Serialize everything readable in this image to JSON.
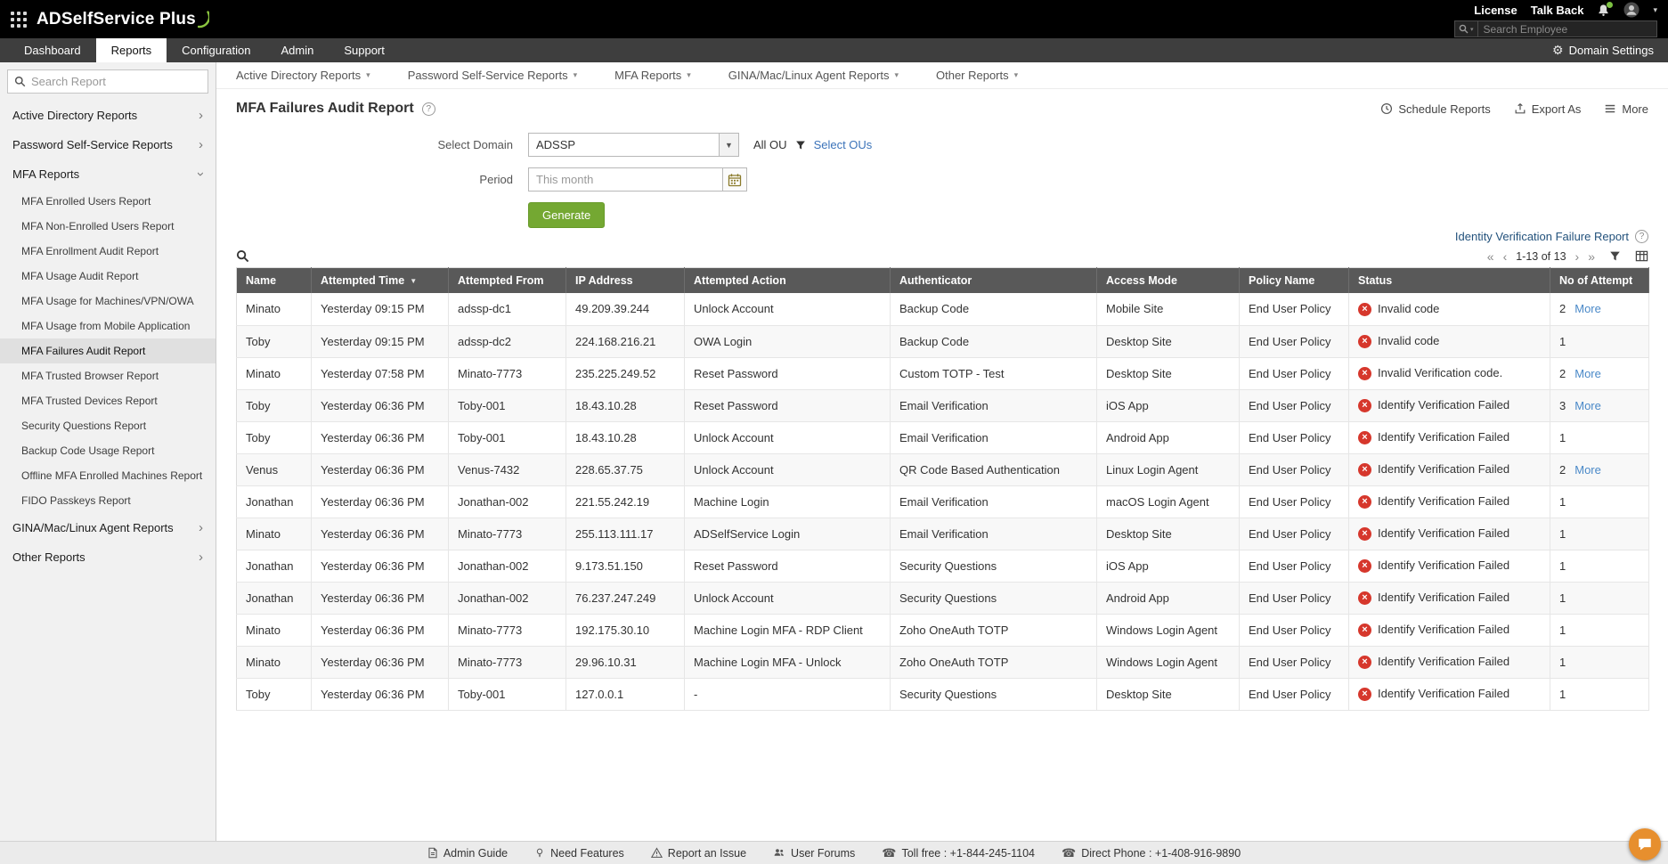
{
  "topbar": {
    "logo_text": "ADSelfService Plus",
    "license_label": "License",
    "talkback_label": "Talk Back",
    "employee_search_placeholder": "Search Employee"
  },
  "navbar": {
    "tabs": [
      "Dashboard",
      "Reports",
      "Configuration",
      "Admin",
      "Support"
    ],
    "active_tab": "Reports",
    "domain_settings_label": "Domain Settings"
  },
  "sidebar": {
    "search_placeholder": "Search Report",
    "sections": [
      {
        "label": "Active Directory Reports",
        "expanded": false
      },
      {
        "label": "Password Self-Service Reports",
        "expanded": false
      },
      {
        "label": "MFA Reports",
        "expanded": true,
        "selected_item": "MFA Failures Audit Report",
        "items": [
          "MFA Enrolled Users Report",
          "MFA Non-Enrolled Users Report",
          "MFA Enrollment Audit Report",
          "MFA Usage Audit Report",
          "MFA Usage for Machines/VPN/OWA",
          "MFA Usage from Mobile Application",
          "MFA Failures Audit Report",
          "MFA Trusted Browser Report",
          "MFA Trusted Devices Report",
          "Security Questions Report",
          "Backup Code Usage Report",
          "Offline MFA Enrolled Machines Report",
          "FIDO Passkeys Report"
        ]
      },
      {
        "label": "GINA/Mac/Linux Agent Reports",
        "expanded": false
      },
      {
        "label": "Other Reports",
        "expanded": false
      }
    ]
  },
  "report_menubar": [
    "Active Directory Reports",
    "Password Self-Service Reports",
    "MFA Reports",
    "GINA/Mac/Linux Agent Reports",
    "Other Reports"
  ],
  "page": {
    "title": "MFA Failures Audit Report",
    "actions": [
      {
        "label": "Schedule Reports",
        "icon": "schedule-icon"
      },
      {
        "label": "Export As",
        "icon": "export-icon"
      },
      {
        "label": "More",
        "icon": "more-icon"
      }
    ]
  },
  "form": {
    "domain_label": "Select Domain",
    "domain_value": "ADSSP",
    "ou_label": "All OU",
    "select_ous_label": "Select OUs",
    "period_label": "Period",
    "period_placeholder": "This month",
    "generate_label": "Generate"
  },
  "links": {
    "identity_failure_report": "Identity Verification Failure Report"
  },
  "table": {
    "pagination": {
      "range": "1-13 of 13"
    },
    "sorted_column": "Attempted Time",
    "more_label": "More",
    "columns": [
      "Name",
      "Attempted Time",
      "Attempted From",
      "IP Address",
      "Attempted Action",
      "Authenticator",
      "Access Mode",
      "Policy Name",
      "Status",
      "No of Attempt"
    ],
    "rows": [
      {
        "name": "Minato",
        "time": "Yesterday 09:15 PM",
        "from": "adssp-dc1",
        "ip": "49.209.39.244",
        "action": "Unlock Account",
        "authenticator": "Backup Code",
        "mode": "Mobile Site",
        "policy": "End User Policy",
        "status": "Invalid code",
        "attempts": "2",
        "more": true
      },
      {
        "name": "Toby",
        "time": "Yesterday 09:15 PM",
        "from": "adssp-dc2",
        "ip": "224.168.216.21",
        "action": "OWA Login",
        "authenticator": "Backup Code",
        "mode": "Desktop Site",
        "policy": "End User Policy",
        "status": "Invalid code",
        "attempts": "1",
        "more": false
      },
      {
        "name": "Minato",
        "time": "Yesterday 07:58 PM",
        "from": "Minato-7773",
        "ip": "235.225.249.52",
        "action": "Reset Password",
        "authenticator": "Custom TOTP - Test",
        "mode": "Desktop Site",
        "policy": "End User Policy",
        "status": "Invalid Verification code.",
        "attempts": "2",
        "more": true
      },
      {
        "name": "Toby",
        "time": "Yesterday 06:36 PM",
        "from": "Toby-001",
        "ip": "18.43.10.28",
        "action": "Reset Password",
        "authenticator": "Email Verification",
        "mode": "iOS App",
        "policy": "End User Policy",
        "status": "Identify Verification Failed",
        "attempts": "3",
        "more": true
      },
      {
        "name": "Toby",
        "time": "Yesterday 06:36 PM",
        "from": "Toby-001",
        "ip": "18.43.10.28",
        "action": "Unlock Account",
        "authenticator": "Email Verification",
        "mode": "Android App",
        "policy": "End User Policy",
        "status": "Identify Verification Failed",
        "attempts": "1",
        "more": false
      },
      {
        "name": "Venus",
        "time": "Yesterday 06:36 PM",
        "from": "Venus-7432",
        "ip": "228.65.37.75",
        "action": "Unlock Account",
        "authenticator": "QR Code Based Authentication",
        "mode": "Linux Login Agent",
        "policy": "End User Policy",
        "status": "Identify Verification Failed",
        "attempts": "2",
        "more": true
      },
      {
        "name": "Jonathan",
        "time": "Yesterday 06:36 PM",
        "from": "Jonathan-002",
        "ip": "221.55.242.19",
        "action": "Machine Login",
        "authenticator": "Email Verification",
        "mode": "macOS Login Agent",
        "policy": "End User Policy",
        "status": "Identify Verification Failed",
        "attempts": "1",
        "more": false
      },
      {
        "name": "Minato",
        "time": "Yesterday 06:36 PM",
        "from": "Minato-7773",
        "ip": "255.113.111.17",
        "action": "ADSelfService Login",
        "authenticator": "Email Verification",
        "mode": "Desktop Site",
        "policy": "End User Policy",
        "status": "Identify Verification Failed",
        "attempts": "1",
        "more": false
      },
      {
        "name": "Jonathan",
        "time": "Yesterday 06:36 PM",
        "from": "Jonathan-002",
        "ip": "9.173.51.150",
        "action": "Reset Password",
        "authenticator": "Security Questions",
        "mode": "iOS App",
        "policy": "End User Policy",
        "status": "Identify Verification Failed",
        "attempts": "1",
        "more": false
      },
      {
        "name": "Jonathan",
        "time": "Yesterday 06:36 PM",
        "from": "Jonathan-002",
        "ip": "76.237.247.249",
        "action": "Unlock Account",
        "authenticator": "Security Questions",
        "mode": "Android App",
        "policy": "End User Policy",
        "status": "Identify Verification Failed",
        "attempts": "1",
        "more": false
      },
      {
        "name": "Minato",
        "time": "Yesterday 06:36 PM",
        "from": "Minato-7773",
        "ip": "192.175.30.10",
        "action": "Machine Login MFA - RDP Client",
        "authenticator": "Zoho OneAuth TOTP",
        "mode": "Windows Login Agent",
        "policy": "End User Policy",
        "status": "Identify Verification Failed",
        "attempts": "1",
        "more": false
      },
      {
        "name": "Minato",
        "time": "Yesterday 06:36 PM",
        "from": "Minato-7773",
        "ip": "29.96.10.31",
        "action": "Machine Login MFA - Unlock",
        "authenticator": "Zoho OneAuth TOTP",
        "mode": "Windows Login Agent",
        "policy": "End User Policy",
        "status": "Identify Verification Failed",
        "attempts": "1",
        "more": false
      },
      {
        "name": "Toby",
        "time": "Yesterday 06:36 PM",
        "from": "Toby-001",
        "ip": "127.0.0.1",
        "action": "-",
        "authenticator": "Security Questions",
        "mode": "Desktop Site",
        "policy": "End User Policy",
        "status": "Identify Verification Failed",
        "attempts": "1",
        "more": false
      }
    ]
  },
  "footer": {
    "items": [
      {
        "label": "Admin Guide",
        "icon": "guide-icon"
      },
      {
        "label": "Need Features",
        "icon": "features-icon"
      },
      {
        "label": "Report an Issue",
        "icon": "issue-icon"
      },
      {
        "label": "User Forums",
        "icon": "forums-icon"
      },
      {
        "label": "Toll free : +1-844-245-1104",
        "icon": "phone-icon"
      },
      {
        "label": "Direct Phone : +1-408-916-9890",
        "icon": "phone-icon"
      }
    ]
  },
  "colors": {
    "accent_green": "#74a832",
    "status_red": "#d6372c",
    "link_blue": "#3b73b9",
    "more_link_blue": "#4a89c8",
    "chat_orange": "#e78f2e",
    "table_header_gray": "#595959"
  }
}
